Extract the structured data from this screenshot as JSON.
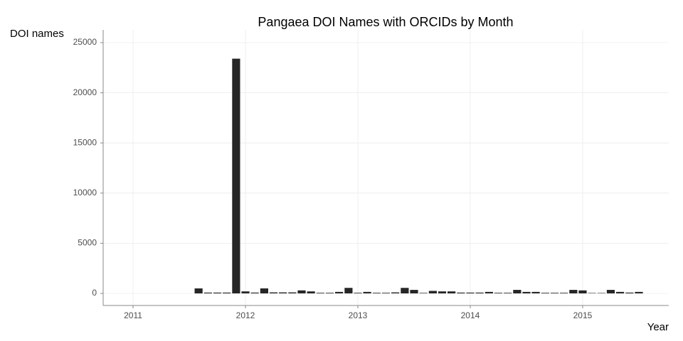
{
  "chart_data": {
    "type": "bar",
    "title": "Pangaea DOI Names with ORCIDs by Month",
    "y_label": "DOI names",
    "x_label": "Year",
    "color": "#262626",
    "grid": true,
    "x": [
      2011.583,
      2011.667,
      2011.75,
      2011.833,
      2011.917,
      2012,
      2012.083,
      2012.167,
      2012.25,
      2012.333,
      2012.417,
      2012.5,
      2012.583,
      2012.667,
      2012.75,
      2012.833,
      2012.917,
      2013,
      2013.083,
      2013.167,
      2013.25,
      2013.333,
      2013.417,
      2013.5,
      2013.583,
      2013.667,
      2013.75,
      2013.833,
      2013.917,
      2014,
      2014.083,
      2014.167,
      2014.25,
      2014.333,
      2014.417,
      2014.5,
      2014.583,
      2014.667,
      2014.75,
      2014.833,
      2014.917,
      2015,
      2015.083,
      2015.167,
      2015.25,
      2015.333,
      2015.417,
      2015.5
    ],
    "values": [
      500,
      80,
      80,
      80,
      23400,
      200,
      80,
      500,
      100,
      100,
      100,
      300,
      200,
      60,
      60,
      150,
      550,
      60,
      150,
      60,
      60,
      100,
      550,
      350,
      50,
      250,
      200,
      200,
      80,
      80,
      80,
      150,
      60,
      60,
      350,
      150,
      150,
      60,
      60,
      60,
      350,
      300,
      40,
      40,
      350,
      150,
      80,
      150
    ],
    "xlim": [
      2010.734,
      2015.766
    ],
    "xticks": [
      2011,
      2012,
      2013,
      2014,
      2015
    ],
    "ylim": [
      -1204,
      26275
    ],
    "yticks": [
      0,
      5000,
      10000,
      15000,
      20000,
      25000
    ]
  }
}
